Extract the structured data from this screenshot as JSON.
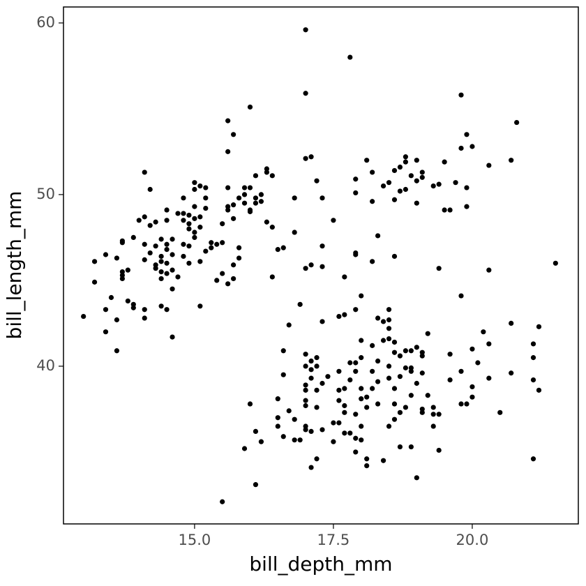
{
  "chart_data": {
    "type": "scatter",
    "x_label": "bill_depth_mm",
    "y_label": "bill_length_mm",
    "color": "#000000",
    "xlim": [
      12.64,
      21.91
    ],
    "ylim": [
      30.81,
      60.93
    ],
    "xticks": [
      {
        "value": 15,
        "label": "15.0"
      },
      17.5,
      {
        "value": 20,
        "label": "20.0"
      }
    ],
    "yticks": [
      40,
      50,
      60
    ],
    "x": [
      13.0,
      13.2,
      13.2,
      13.4,
      13.4,
      13.4,
      13.5,
      13.6,
      13.6,
      13.6,
      13.7,
      13.7,
      13.7,
      13.7,
      13.7,
      13.8,
      13.8,
      13.9,
      13.9,
      13.9,
      14.0,
      14.1,
      14.1,
      14.1,
      14.1,
      14.1,
      14.1,
      14.2,
      14.2,
      14.2,
      14.3,
      14.3,
      14.3,
      14.3,
      14.4,
      14.4,
      14.4,
      14.4,
      14.4,
      14.4,
      14.5,
      14.5,
      14.5,
      14.5,
      14.5,
      14.5,
      14.5,
      14.6,
      14.6,
      14.6,
      14.6,
      14.6,
      14.7,
      14.7,
      14.8,
      14.8,
      14.8,
      14.8,
      14.8,
      14.9,
      14.9,
      14.9,
      14.9,
      14.9,
      15.0,
      15.0,
      15.0,
      15.0,
      15.0,
      15.0,
      15.1,
      15.1,
      15.1,
      15.1,
      15.1,
      15.2,
      15.2,
      15.2,
      15.2,
      15.3,
      15.3,
      15.4,
      15.4,
      15.5,
      15.5,
      15.5,
      15.6,
      15.6,
      15.6,
      15.6,
      15.6,
      15.6,
      15.7,
      15.7,
      15.7,
      15.7,
      15.7,
      15.8,
      15.8,
      15.8,
      15.9,
      15.9,
      15.9,
      16.0,
      16.0,
      16.0,
      16.0,
      16.1,
      16.1,
      16.1,
      16.2,
      16.2,
      16.3,
      16.3,
      16.3,
      16.4,
      16.4,
      16.4,
      16.5,
      16.6,
      16.8,
      17.0,
      17.0,
      17.0,
      17.1,
      17.2,
      17.3,
      17.1,
      17.0,
      16.8,
      17.3,
      17.3,
      17.5,
      17.7,
      17.8,
      17.9,
      17.9,
      17.9,
      17.9,
      18.1,
      18.2,
      18.2,
      18.2,
      18.3,
      18.4,
      18.5,
      18.6,
      18.6,
      18.6,
      18.7,
      18.7,
      18.8,
      18.8,
      18.8,
      18.9,
      19.0,
      19.0,
      19.0,
      19.1,
      19.1,
      19.3,
      19.4,
      19.5,
      19.5,
      19.6,
      19.7,
      19.8,
      19.8,
      19.9,
      19.9,
      19.9,
      20.0,
      20.3,
      20.7,
      20.8,
      19.8,
      19.4,
      20.3,
      21.5,
      20.0,
      20.2,
      20.3,
      20.1,
      19.6,
      19.8,
      19.2,
      19.1,
      19.1,
      19.0,
      18.9,
      18.9,
      18.9,
      18.8,
      18.8,
      18.7,
      18.7,
      18.6,
      18.6,
      18.5,
      18.5,
      18.5,
      18.5,
      18.4,
      18.4,
      18.3,
      18.3,
      18.3,
      18.2,
      18.0,
      18.0,
      17.9,
      18.0,
      17.9,
      17.7,
      17.6,
      17.3,
      16.9,
      16.7,
      16.6,
      17.0,
      17.0,
      17.1,
      17.2,
      17.2,
      17.0,
      17.1,
      17.1,
      17.0,
      17.0,
      17.0,
      17.2,
      17.2,
      17.3,
      17.4,
      17.6,
      17.6,
      17.6,
      17.8,
      17.9,
      17.8,
      17.7,
      17.7,
      17.9,
      18.0,
      18.0,
      18.1,
      18.1,
      18.2,
      18.3,
      18.2,
      18.5,
      18.5,
      18.6,
      18.6,
      18.6,
      18.7,
      18.8,
      18.9,
      19.0,
      19.1,
      19.1,
      19.2,
      19.3,
      19.3,
      19.3,
      19.4,
      19.6,
      19.8,
      19.9,
      20.0,
      20.0,
      20.3,
      20.5,
      20.7,
      21.1,
      21.1,
      21.2,
      21.1,
      21.2,
      21.1,
      20.7,
      16.0,
      16.1,
      16.2,
      16.1,
      15.9,
      15.5,
      16.5,
      16.5,
      16.5,
      16.6,
      16.6,
      16.7,
      16.8,
      16.8,
      16.9,
      17.0,
      17.0,
      17.1,
      17.3,
      17.1,
      17.2,
      17.5,
      17.5,
      17.6,
      17.7,
      17.7,
      17.8,
      17.9,
      17.9,
      18.0,
      18.0,
      18.1,
      18.1,
      18.4,
      18.5,
      18.7,
      18.9,
      19.0,
      19.4,
      19.1
    ],
    "values": [
      42.9,
      46.1,
      44.9,
      43.3,
      46.5,
      42.0,
      44.0,
      46.3,
      42.7,
      40.9,
      45.5,
      47.2,
      45.3,
      45.1,
      47.3,
      45.6,
      43.8,
      43.6,
      43.4,
      47.5,
      48.5,
      48.7,
      46.2,
      47.1,
      42.8,
      51.3,
      43.3,
      46.6,
      48.2,
      50.3,
      45.9,
      45.7,
      48.4,
      47.0,
      43.5,
      46.4,
      45.1,
      46.1,
      47.4,
      45.5,
      49.1,
      43.3,
      48.5,
      46.8,
      46.0,
      47.1,
      45.4,
      46.5,
      47.4,
      45.6,
      44.5,
      41.7,
      48.9,
      45.2,
      48.9,
      46.4,
      47.1,
      49.8,
      48.5,
      48.3,
      46.0,
      47.0,
      48.0,
      48.8,
      50.7,
      50.3,
      47.5,
      47.8,
      49.3,
      48.6,
      46.1,
      48.7,
      48.1,
      50.5,
      43.5,
      49.2,
      49.8,
      50.4,
      46.7,
      46.9,
      47.2,
      45.0,
      47.1,
      47.2,
      45.4,
      48.3,
      52.5,
      49.1,
      44.8,
      49.3,
      54.3,
      50.4,
      48.6,
      45.1,
      49.4,
      45.9,
      53.5,
      46.9,
      46.3,
      49.8,
      50.4,
      50.0,
      49.5,
      55.1,
      49.1,
      49.0,
      50.4,
      51.1,
      49.8,
      49.5,
      50.0,
      49.6,
      51.5,
      51.3,
      48.4,
      45.2,
      48.1,
      51.1,
      46.8,
      46.9,
      49.8,
      59.6,
      55.9,
      52.1,
      52.2,
      50.8,
      49.8,
      45.9,
      45.7,
      47.8,
      47.0,
      45.8,
      48.5,
      45.2,
      58.0,
      46.5,
      46.6,
      50.9,
      50.1,
      52.0,
      51.3,
      46.1,
      49.6,
      47.6,
      50.5,
      50.7,
      49.7,
      46.4,
      51.4,
      50.2,
      51.6,
      50.3,
      52.2,
      51.9,
      51.1,
      52.0,
      49.5,
      50.8,
      51.0,
      51.3,
      50.5,
      50.6,
      51.9,
      49.1,
      49.1,
      50.7,
      55.8,
      52.7,
      53.5,
      49.3,
      50.4,
      52.8,
      51.7,
      52.0,
      54.2,
      44.1,
      45.7,
      45.6,
      46.0,
      41.0,
      42.0,
      41.3,
      40.2,
      40.7,
      39.7,
      41.9,
      40.6,
      40.8,
      41.1,
      39.7,
      40.9,
      39.9,
      40.9,
      39.9,
      40.6,
      39.4,
      40.8,
      41.4,
      43.3,
      42.7,
      42.2,
      41.6,
      42.6,
      41.5,
      40.3,
      39.1,
      42.8,
      41.2,
      41.5,
      40.5,
      43.3,
      44.1,
      40.2,
      43.0,
      42.9,
      42.6,
      43.6,
      42.4,
      40.9,
      40.7,
      40.0,
      40.3,
      40.5,
      40.0,
      38.9,
      39.8,
      39.3,
      38.6,
      38.0,
      37.7,
      38.6,
      37.6,
      39.0,
      39.4,
      38.6,
      38.0,
      39.7,
      40.2,
      39.7,
      39.2,
      38.7,
      37.7,
      37.2,
      38.1,
      38.7,
      38.2,
      37.6,
      38.7,
      37.8,
      39.7,
      40.0,
      39.3,
      38.7,
      37.8,
      36.9,
      37.3,
      37.6,
      38.3,
      39.0,
      39.6,
      37.3,
      38.3,
      37.6,
      37.2,
      36.5,
      35.1,
      39.2,
      37.8,
      37.8,
      38.8,
      38.2,
      39.3,
      37.3,
      39.6,
      40.5,
      41.3,
      42.3,
      39.2,
      38.6,
      34.6,
      42.5,
      37.8,
      36.2,
      35.6,
      33.1,
      35.2,
      32.1,
      38.1,
      37.0,
      36.5,
      35.9,
      39.5,
      37.4,
      35.7,
      36.9,
      35.7,
      36.5,
      36.3,
      36.2,
      36.3,
      34.1,
      34.6,
      36.7,
      35.6,
      36.7,
      37.3,
      36.1,
      36.1,
      35.8,
      35.0,
      36.5,
      35.7,
      34.6,
      34.2,
      34.5,
      36.5,
      35.3,
      35.3,
      33.5,
      37.2,
      37.5
    ]
  }
}
